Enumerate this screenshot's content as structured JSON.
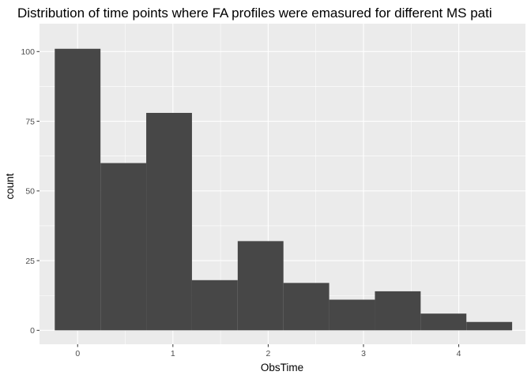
{
  "chart_data": {
    "type": "bar",
    "title": "Distribution of time points where FA profiles were emasured for different MS pati",
    "xlabel": "ObsTime",
    "ylabel": "count",
    "xlim": [
      -0.4,
      4.7
    ],
    "ylim": [
      -5,
      110
    ],
    "xticks": [
      0,
      1,
      2,
      3,
      4
    ],
    "yticks": [
      0,
      25,
      50,
      75,
      100
    ],
    "bins": [
      {
        "x0": -0.24,
        "x1": 0.24,
        "count": 101
      },
      {
        "x0": 0.24,
        "x1": 0.72,
        "count": 60
      },
      {
        "x0": 0.72,
        "x1": 1.2,
        "count": 78
      },
      {
        "x0": 1.2,
        "x1": 1.68,
        "count": 18
      },
      {
        "x0": 1.68,
        "x1": 2.16,
        "count": 32
      },
      {
        "x0": 2.16,
        "x1": 2.64,
        "count": 17
      },
      {
        "x0": 2.64,
        "x1": 3.12,
        "count": 11
      },
      {
        "x0": 3.12,
        "x1": 3.6,
        "count": 14
      },
      {
        "x0": 3.6,
        "x1": 4.08,
        "count": 6
      },
      {
        "x0": 4.08,
        "x1": 4.56,
        "count": 3
      }
    ],
    "grid": true,
    "colors": {
      "panel_background": "#ebebeb",
      "grid_major": "#ffffff",
      "bar_fill": "#474747",
      "tick_text": "#4d4d4d"
    }
  }
}
